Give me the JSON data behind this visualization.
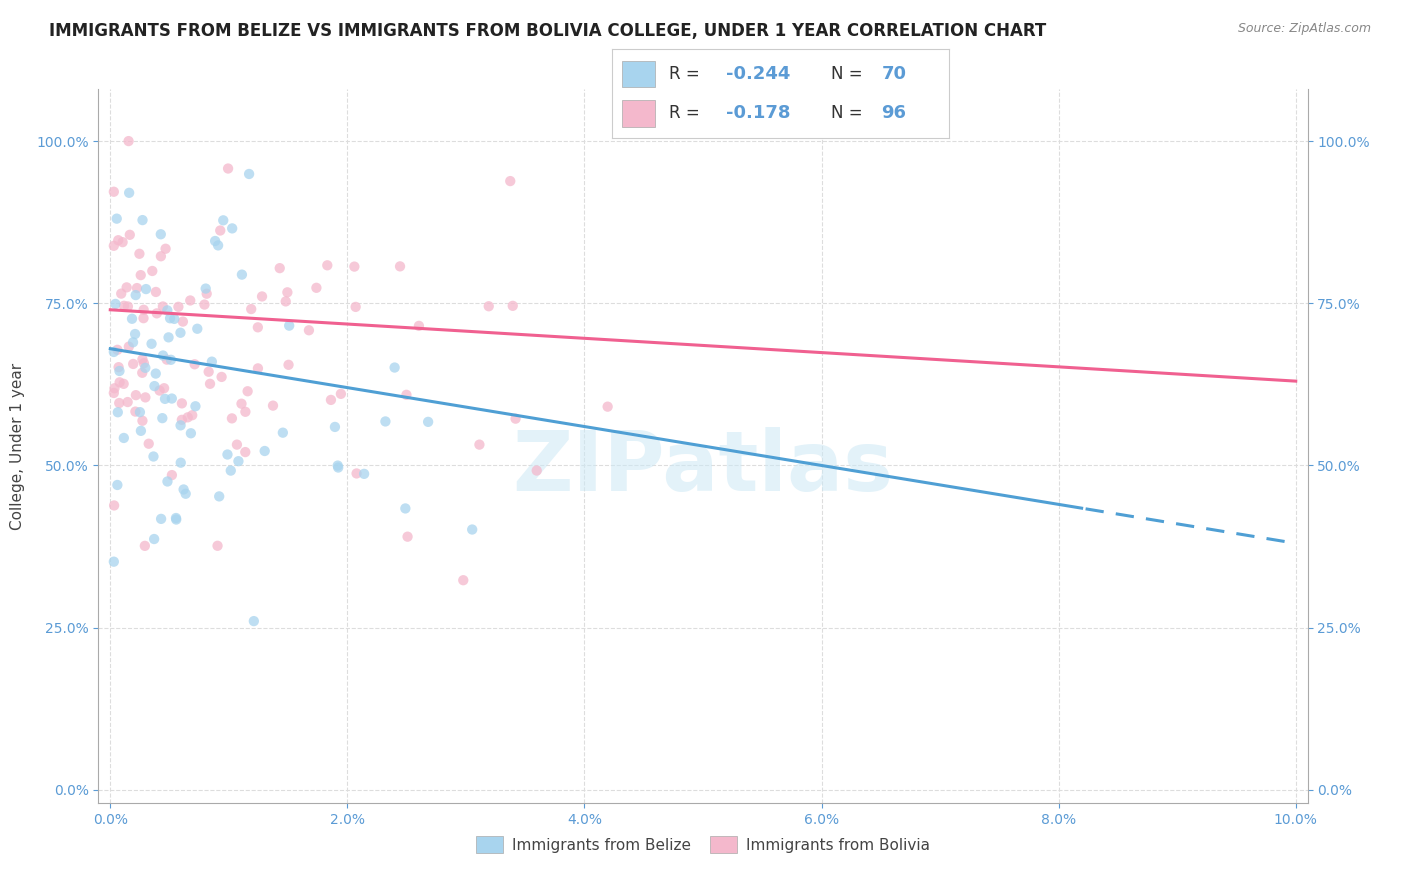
{
  "title": "IMMIGRANTS FROM BELIZE VS IMMIGRANTS FROM BOLIVIA COLLEGE, UNDER 1 YEAR CORRELATION CHART",
  "source": "Source: ZipAtlas.com",
  "xlabel_ticks": [
    "0.0%",
    "2.0%",
    "4.0%",
    "6.0%",
    "8.0%",
    "10.0%"
  ],
  "xlabel_vals": [
    0.0,
    0.02,
    0.04,
    0.06,
    0.08,
    0.1
  ],
  "ylabel_ticks": [
    "0.0%",
    "25.0%",
    "50.0%",
    "75.0%",
    "100.0%"
  ],
  "ylabel_vals": [
    0.0,
    0.25,
    0.5,
    0.75,
    1.0
  ],
  "ylabel_label": "College, Under 1 year",
  "belize_R": -0.244,
  "belize_N": 70,
  "bolivia_R": -0.178,
  "bolivia_N": 96,
  "belize_color": "#a8d4ee",
  "bolivia_color": "#f4b8cc",
  "belize_line_color": "#4f9fd4",
  "bolivia_line_color": "#f06090",
  "background_color": "#ffffff",
  "grid_color": "#cccccc",
  "watermark": "ZIPatlas",
  "title_fontsize": 12,
  "source_fontsize": 9,
  "tick_fontsize": 10,
  "ylabel_fontsize": 11,
  "watermark_fontsize": 60
}
